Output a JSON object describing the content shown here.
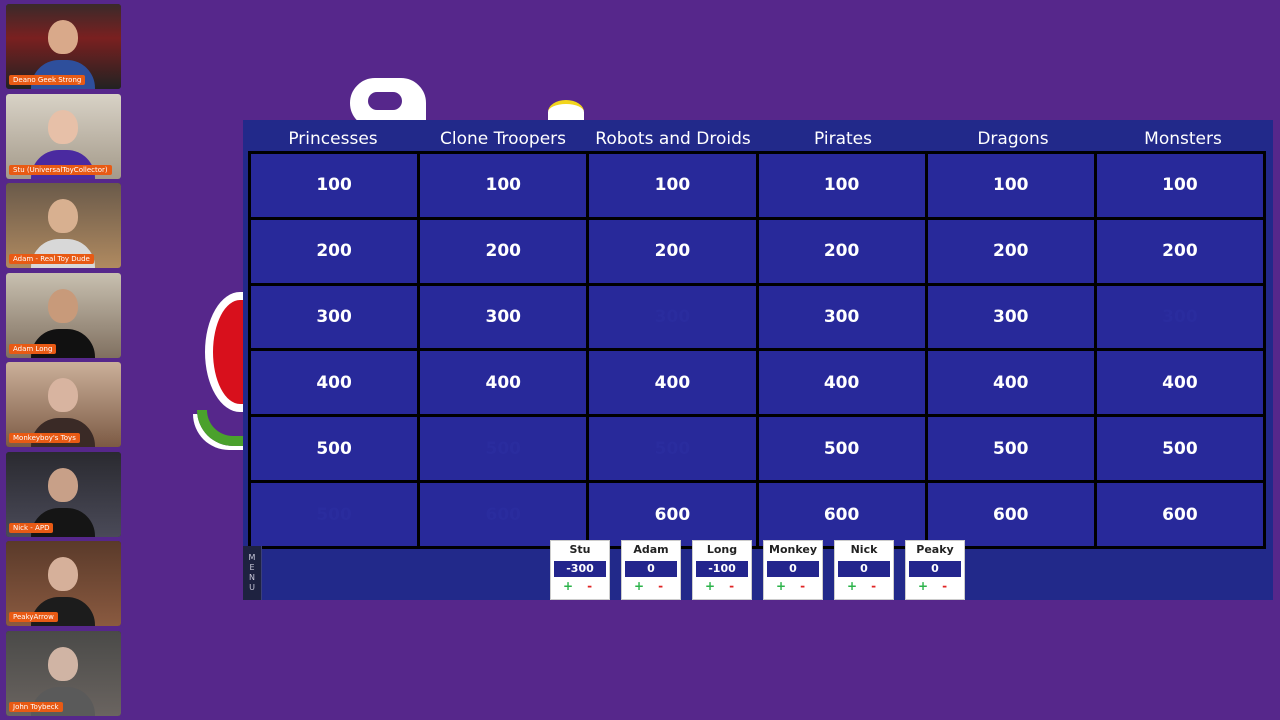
{
  "participants": [
    {
      "name": "Deano Geek Strong"
    },
    {
      "name": "Stu (UniversalToyCollector)"
    },
    {
      "name": "Adam - Real Toy Dude"
    },
    {
      "name": "Adam Long"
    },
    {
      "name": "Monkeyboy's Toys"
    },
    {
      "name": "Nick - APD"
    },
    {
      "name": "PeakyArrow"
    },
    {
      "name": "John Toybeck"
    }
  ],
  "board": {
    "categories": [
      "Princesses",
      "Clone Troopers",
      "Robots and Droids",
      "Pirates",
      "Dragons",
      "Monsters"
    ],
    "rows": [
      [
        {
          "v": "100",
          "used": false
        },
        {
          "v": "100",
          "used": false
        },
        {
          "v": "100",
          "used": false
        },
        {
          "v": "100",
          "used": false
        },
        {
          "v": "100",
          "used": false
        },
        {
          "v": "100",
          "used": false
        }
      ],
      [
        {
          "v": "200",
          "used": false
        },
        {
          "v": "200",
          "used": false
        },
        {
          "v": "200",
          "used": false
        },
        {
          "v": "200",
          "used": false
        },
        {
          "v": "200",
          "used": false
        },
        {
          "v": "200",
          "used": false
        }
      ],
      [
        {
          "v": "300",
          "used": false
        },
        {
          "v": "300",
          "used": false
        },
        {
          "v": "300",
          "used": true
        },
        {
          "v": "300",
          "used": false
        },
        {
          "v": "300",
          "used": false
        },
        {
          "v": "300",
          "used": true
        }
      ],
      [
        {
          "v": "400",
          "used": false
        },
        {
          "v": "400",
          "used": false
        },
        {
          "v": "400",
          "used": false
        },
        {
          "v": "400",
          "used": false
        },
        {
          "v": "400",
          "used": false
        },
        {
          "v": "400",
          "used": false
        }
      ],
      [
        {
          "v": "500",
          "used": false
        },
        {
          "v": "500",
          "used": true
        },
        {
          "v": "500",
          "used": true
        },
        {
          "v": "500",
          "used": false
        },
        {
          "v": "500",
          "used": false
        },
        {
          "v": "500",
          "used": false
        }
      ],
      [
        {
          "v": "500",
          "used": true
        },
        {
          "v": "600",
          "used": true
        },
        {
          "v": "600",
          "used": false
        },
        {
          "v": "600",
          "used": false
        },
        {
          "v": "600",
          "used": false
        },
        {
          "v": "600",
          "used": false
        }
      ]
    ],
    "menu_letters": [
      "M",
      "E",
      "N",
      "U"
    ]
  },
  "scoreboard": [
    {
      "name": "Stu",
      "score": "-300",
      "plus": "+",
      "minus": "-"
    },
    {
      "name": "Adam",
      "score": "0",
      "plus": "+",
      "minus": "-"
    },
    {
      "name": "Long",
      "score": "-100",
      "plus": "+",
      "minus": "-"
    },
    {
      "name": "Monkey",
      "score": "0",
      "plus": "+",
      "minus": "-"
    },
    {
      "name": "Nick",
      "score": "0",
      "plus": "+",
      "minus": "-"
    },
    {
      "name": "Peaky",
      "score": "0",
      "plus": "+",
      "minus": "-"
    }
  ],
  "colors": {
    "background": "#56278b",
    "board": "#22298a",
    "cell": "#28299a",
    "name_tag": "#e85a14"
  }
}
